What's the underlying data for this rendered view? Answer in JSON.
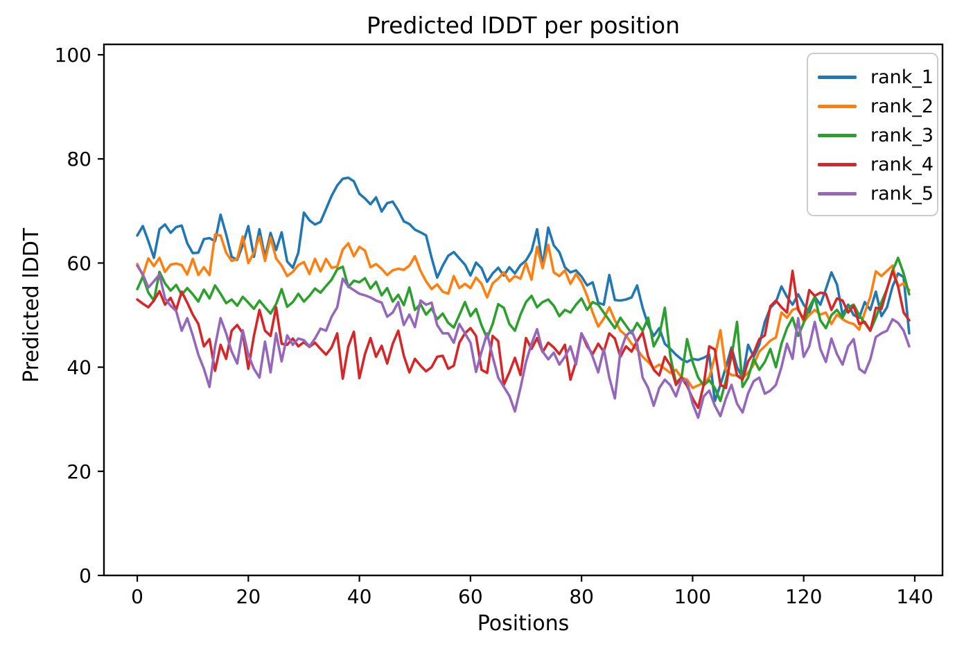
{
  "figure": {
    "background": "#ffffff"
  },
  "chart_data": {
    "type": "line",
    "title": "Predicted lDDT per position",
    "xlabel": "Positions",
    "ylabel": "Predicted lDDT",
    "x_start": 0,
    "x_step": 1,
    "xlim": [
      -6,
      145
    ],
    "ylim": [
      0,
      102
    ],
    "xticks": [
      0,
      20,
      40,
      60,
      80,
      100,
      120,
      140
    ],
    "yticks": [
      0,
      20,
      40,
      60,
      80,
      100
    ],
    "grid": false,
    "legend_position": "upper right",
    "axis_color": "#000000",
    "series": [
      {
        "name": "rank_1",
        "color": "#1f77b4",
        "values": [
          65.3,
          67.1,
          64.2,
          61.0,
          66.5,
          67.4,
          65.8,
          66.9,
          67.2,
          63.8,
          61.9,
          62.0,
          64.6,
          64.8,
          64.2,
          69.3,
          65.5,
          61.2,
          60.6,
          63.5,
          67.1,
          61.2,
          66.5,
          61.1,
          65.8,
          62.5,
          65.9,
          60.3,
          59.1,
          62.0,
          69.7,
          68.2,
          67.4,
          67.9,
          70.4,
          72.9,
          74.9,
          76.2,
          76.4,
          75.7,
          73.3,
          72.4,
          71.3,
          72.6,
          69.9,
          71.5,
          71.8,
          70.1,
          68.0,
          67.5,
          66.4,
          65.9,
          65.3,
          61.0,
          57.2,
          59.5,
          61.4,
          62.1,
          60.9,
          59.7,
          57.6,
          60.1,
          59.0,
          56.4,
          58.0,
          59.1,
          57.6,
          59.2,
          58.0,
          59.6,
          60.5,
          62.3,
          66.5,
          59.4,
          66.8,
          63.4,
          62.1,
          59.2,
          58.2,
          58.6,
          57.4,
          55.7,
          56.3,
          52.4,
          52.0,
          57.7,
          52.9,
          52.8,
          53.0,
          53.4,
          55.7,
          51.4,
          48.1,
          46.0,
          47.5,
          44.5,
          43.5,
          42.4,
          41.5,
          41.0,
          41.6,
          41.4,
          41.8,
          42.4,
          33.5,
          36.6,
          40.0,
          43.8,
          40.0,
          38.0,
          44.3,
          42.0,
          44.3,
          48.7,
          51.4,
          52.5,
          55.5,
          53.5,
          52.0,
          54.0,
          52.0,
          50.5,
          53.5,
          52.0,
          55.0,
          58.2,
          55.9,
          50.1,
          52.0,
          50.0,
          49.5,
          52.5,
          51.0,
          54.5,
          49.8,
          51.5,
          55.5,
          58.0,
          57.3,
          46.5
        ]
      },
      {
        "name": "rank_2",
        "color": "#ff7f0e",
        "values": [
          59.8,
          57.6,
          60.9,
          59.4,
          61.0,
          58.3,
          59.7,
          59.9,
          59.6,
          57.8,
          60.8,
          57.7,
          59.2,
          57.7,
          65.5,
          65.3,
          62.0,
          60.4,
          60.8,
          65.1,
          60.0,
          62.0,
          65.1,
          60.4,
          64.9,
          60.9,
          59.5,
          57.5,
          58.3,
          59.6,
          60.2,
          57.9,
          60.8,
          58.4,
          60.8,
          59.1,
          59.3,
          62.6,
          63.8,
          61.3,
          63.1,
          62.4,
          59.2,
          59.8,
          58.9,
          57.7,
          58.6,
          58.9,
          58.7,
          59.5,
          61.3,
          58.5,
          56.5,
          55.0,
          55.9,
          54.5,
          54.1,
          57.5,
          55.2,
          56.0,
          55.2,
          57.2,
          56.0,
          53.4,
          56.1,
          57.0,
          58.2,
          56.5,
          57.5,
          57.0,
          60.0,
          56.8,
          63.1,
          59.0,
          63.5,
          58.2,
          57.5,
          58.6,
          56.0,
          57.9,
          56.3,
          53.7,
          50.5,
          47.8,
          49.3,
          51.5,
          49.0,
          47.0,
          46.1,
          44.5,
          43.4,
          42.0,
          41.0,
          39.8,
          40.5,
          39.7,
          38.9,
          39.5,
          38.0,
          37.6,
          36.0,
          36.5,
          37.0,
          38.0,
          42.0,
          47.1,
          39.3,
          38.5,
          38.4,
          38.0,
          38.9,
          40.5,
          43.0,
          44.0,
          45.1,
          45.7,
          50.5,
          49.5,
          51.0,
          51.4,
          48.7,
          50.0,
          51.0,
          50.1,
          50.5,
          48.3,
          50.1,
          49.2,
          48.6,
          48.3,
          47.2,
          50.5,
          53.5,
          58.4,
          57.5,
          58.5,
          59.5,
          55.5,
          56.1,
          54.8
        ]
      },
      {
        "name": "rank_3",
        "color": "#2ca02c",
        "values": [
          55.0,
          57.4,
          54.3,
          52.8,
          58.3,
          56.1,
          54.7,
          55.8,
          53.9,
          55.2,
          54.0,
          52.6,
          54.9,
          53.2,
          55.7,
          54.1,
          52.3,
          53.0,
          51.8,
          53.5,
          52.4,
          51.2,
          52.8,
          51.5,
          50.3,
          52.1,
          55.0,
          51.6,
          52.5,
          54.1,
          52.6,
          53.7,
          55.1,
          54.3,
          55.6,
          56.8,
          58.8,
          59.3,
          55.4,
          56.6,
          56.3,
          57.1,
          55.1,
          56.4,
          53.8,
          55.2,
          52.6,
          53.9,
          51.9,
          55.3,
          51.0,
          52.1,
          50.1,
          51.3,
          49.2,
          50.3,
          48.5,
          47.6,
          50.0,
          52.5,
          49.8,
          51.2,
          48.0,
          45.6,
          48.3,
          52.1,
          51.4,
          48.3,
          47.0,
          50.1,
          52.5,
          53.7,
          51.5,
          52.5,
          53.0,
          51.8,
          49.8,
          51.0,
          50.5,
          52.0,
          53.2,
          51.0,
          52.5,
          52.0,
          50.5,
          49.0,
          47.5,
          49.5,
          48.0,
          46.5,
          48.5,
          47.0,
          49.5,
          44.0,
          46.0,
          51.4,
          42.0,
          37.0,
          38.0,
          45.4,
          41.0,
          38.0,
          36.5,
          37.5,
          36.0,
          33.5,
          37.5,
          42.0,
          48.7,
          36.2,
          38.0,
          41.6,
          39.5,
          41.0,
          43.5,
          40.0,
          44.5,
          47.5,
          49.5,
          46.0,
          48.5,
          51.5,
          53.5,
          49.0,
          47.5,
          50.0,
          51.0,
          49.5,
          51.5,
          52.0,
          50.0,
          48.5,
          47.0,
          49.5,
          52.5,
          55.0,
          58.5,
          61.0,
          58.0,
          54.0
        ]
      },
      {
        "name": "rank_4",
        "color": "#d62728",
        "values": [
          53.0,
          52.2,
          51.5,
          52.8,
          54.6,
          52.0,
          53.3,
          51.0,
          54.5,
          52.4,
          50.1,
          48.3,
          44.0,
          45.4,
          39.3,
          44.3,
          41.6,
          47.0,
          48.1,
          46.5,
          39.7,
          46.0,
          51.0,
          47.0,
          46.0,
          51.5,
          44.5,
          44.3,
          45.5,
          44.0,
          44.8,
          43.9,
          44.7,
          43.5,
          42.4,
          43.8,
          46.5,
          37.8,
          44.0,
          46.8,
          37.9,
          42.5,
          45.6,
          42.0,
          44.1,
          40.7,
          44.5,
          47.0,
          42.2,
          39.0,
          41.6,
          40.3,
          39.2,
          40.0,
          42.0,
          42.2,
          39.7,
          40.3,
          44.7,
          46.5,
          47.5,
          46.0,
          39.5,
          38.9,
          46.0,
          45.0,
          36.6,
          39.0,
          41.8,
          38.5,
          45.6,
          43.5,
          45.6,
          42.9,
          44.7,
          43.8,
          42.5,
          44.3,
          37.6,
          41.0,
          46.5,
          44.0,
          42.5,
          44.5,
          43.0,
          46.5,
          45.5,
          42.0,
          44.0,
          43.0,
          45.0,
          46.7,
          42.0,
          39.5,
          38.4,
          42.0,
          40.3,
          36.6,
          38.0,
          36.4,
          34.0,
          32.2,
          36.6,
          44.0,
          43.4,
          36.6,
          36.0,
          43.4,
          38.4,
          37.6,
          41.1,
          42.7,
          45.4,
          46.1,
          51.7,
          52.8,
          51.5,
          50.5,
          58.5,
          51.0,
          49.2,
          54.8,
          53.7,
          54.3,
          54.1,
          51.0,
          53.2,
          52.8,
          50.5,
          51.8,
          48.3,
          48.7,
          47.0,
          51.4,
          51.2,
          55.0,
          58.5,
          55.5,
          50.5,
          49.0
        ]
      },
      {
        "name": "rank_5",
        "color": "#9467bd",
        "values": [
          59.5,
          57.8,
          55.3,
          56.5,
          57.8,
          53.2,
          51.8,
          50.8,
          47.0,
          49.4,
          46.1,
          42.4,
          39.7,
          36.2,
          44.0,
          49.4,
          46.5,
          43.0,
          40.7,
          47.1,
          42.4,
          39.7,
          38.0,
          44.9,
          39.0,
          46.5,
          41.1,
          46.1,
          44.3,
          45.5,
          45.2,
          44.0,
          45.5,
          47.4,
          47.0,
          49.7,
          51.5,
          57.0,
          55.5,
          54.8,
          54.1,
          53.8,
          53.4,
          52.8,
          52.4,
          49.7,
          50.5,
          52.5,
          48.1,
          50.1,
          47.7,
          52.8,
          52.0,
          52.4,
          48.1,
          46.5,
          46.5,
          44.7,
          48.3,
          46.5,
          44.7,
          39.1,
          43.0,
          46.5,
          42.0,
          38.0,
          36.2,
          34.5,
          31.5,
          36.0,
          41.0,
          44.5,
          47.3,
          43.0,
          41.5,
          42.8,
          40.5,
          42.0,
          44.0,
          40.5,
          46.5,
          44.5,
          42.0,
          39.0,
          43.5,
          38.0,
          34.0,
          43.0,
          46.0,
          47.0,
          44.5,
          38.0,
          36.0,
          32.6,
          36.0,
          37.6,
          36.5,
          34.4,
          37.6,
          37.2,
          33.0,
          30.3,
          34.4,
          35.5,
          32.6,
          30.6,
          34.0,
          36.6,
          33.0,
          31.3,
          35.0,
          37.3,
          38.0,
          34.9,
          35.5,
          36.6,
          40.0,
          44.5,
          41.6,
          49.4,
          42.0,
          44.0,
          48.7,
          43.5,
          41.0,
          45.5,
          42.5,
          40.5,
          44.0,
          45.4,
          39.7,
          38.9,
          41.5,
          45.8,
          46.5,
          47.0,
          49.2,
          48.5,
          47.0,
          44.0
        ]
      }
    ]
  }
}
